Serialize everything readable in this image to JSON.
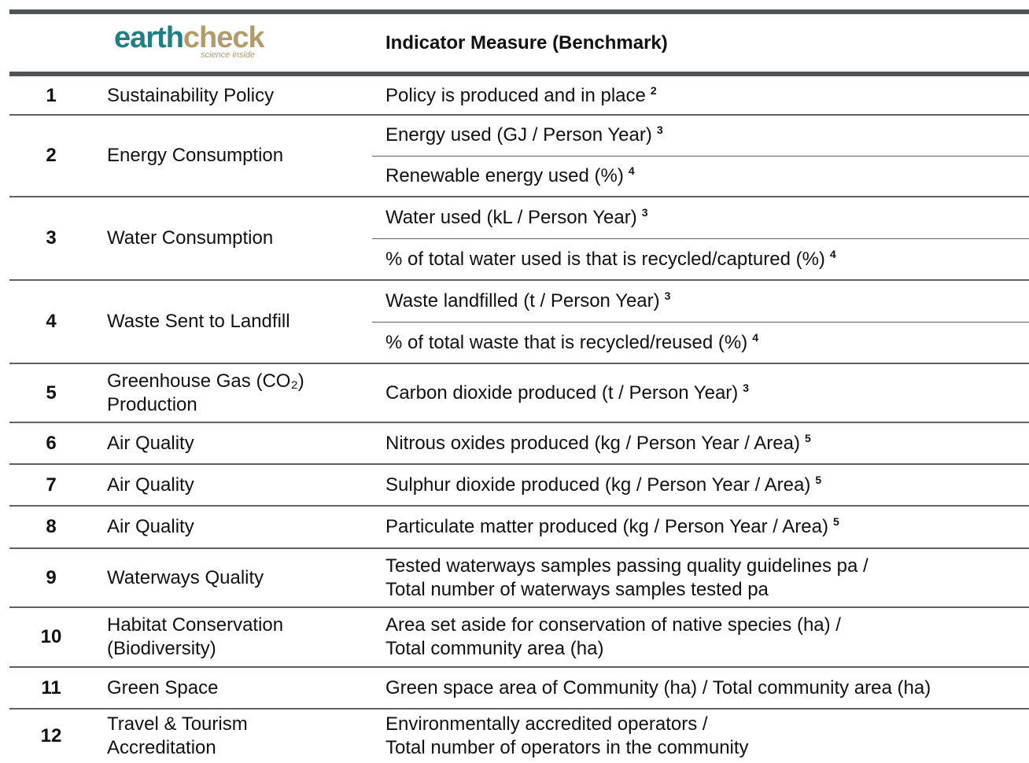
{
  "logo": {
    "part1": "earth",
    "part2": "check",
    "tagline": "science inside"
  },
  "header": {
    "measure": "Indicator Measure (Benchmark)"
  },
  "rows": [
    {
      "num": "1",
      "name": [
        "Sustainability Policy"
      ],
      "measures": [
        {
          "lines": [
            "Policy is produced and in place"
          ],
          "note": "2"
        }
      ]
    },
    {
      "num": "2",
      "name": [
        "Energy Consumption"
      ],
      "measures": [
        {
          "lines": [
            "Energy used (GJ / Person Year)"
          ],
          "note": "3"
        },
        {
          "lines": [
            "Renewable energy used (%)"
          ],
          "note": "4"
        }
      ]
    },
    {
      "num": "3",
      "name": [
        "Water Consumption"
      ],
      "measures": [
        {
          "lines": [
            "Water used (kL / Person Year)"
          ],
          "note": "3"
        },
        {
          "lines": [
            "% of total water used is that is recycled/captured (%)"
          ],
          "note": "4"
        }
      ]
    },
    {
      "num": "4",
      "name": [
        "Waste Sent to Landfill"
      ],
      "measures": [
        {
          "lines": [
            "Waste landfilled (t / Person Year)"
          ],
          "note": "3"
        },
        {
          "lines": [
            "% of total waste that is recycled/reused (%)"
          ],
          "note": "4"
        }
      ]
    },
    {
      "num": "5",
      "name": [
        "Greenhouse Gas (CO₂)",
        "Production"
      ],
      "measures": [
        {
          "lines": [
            "Carbon dioxide produced (t / Person Year)"
          ],
          "note": "3"
        }
      ]
    },
    {
      "num": "6",
      "name": [
        "Air Quality"
      ],
      "measures": [
        {
          "lines": [
            "Nitrous oxides produced (kg / Person Year / Area)"
          ],
          "note": "5"
        }
      ]
    },
    {
      "num": "7",
      "name": [
        "Air Quality"
      ],
      "measures": [
        {
          "lines": [
            "Sulphur dioxide produced (kg / Person Year / Area)"
          ],
          "note": "5"
        }
      ]
    },
    {
      "num": "8",
      "name": [
        "Air Quality"
      ],
      "measures": [
        {
          "lines": [
            "Particulate matter produced (kg / Person Year / Area)"
          ],
          "note": "5"
        }
      ]
    },
    {
      "num": "9",
      "name": [
        "Waterways Quality"
      ],
      "measures": [
        {
          "lines": [
            "Tested waterways samples passing quality guidelines pa /",
            "Total number of waterways samples tested pa"
          ]
        }
      ]
    },
    {
      "num": "10",
      "name": [
        "Habitat Conservation",
        "(Biodiversity)"
      ],
      "measures": [
        {
          "lines": [
            "Area set aside for conservation of native species (ha) /",
            "Total community area (ha)"
          ]
        }
      ]
    },
    {
      "num": "11",
      "name": [
        "Green Space"
      ],
      "measures": [
        {
          "lines": [
            "Green space area of Community (ha) / Total community area (ha)"
          ]
        }
      ]
    },
    {
      "num": "12",
      "name": [
        "Travel & Tourism",
        "Accreditation"
      ],
      "measures": [
        {
          "lines": [
            "Environmentally accredited operators /",
            "Total number of operators in the community"
          ]
        }
      ]
    }
  ]
}
